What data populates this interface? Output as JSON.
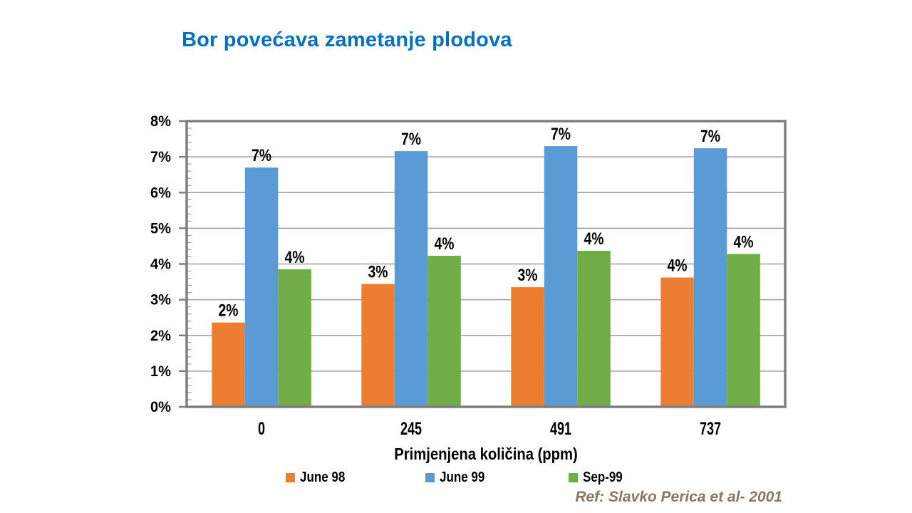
{
  "slide_title": {
    "text": "Bor povećava zametanje plodova",
    "color": "#0070C0"
  },
  "chart_data": {
    "type": "bar",
    "title": "Bor povećava zametanje plodova",
    "categories": [
      "0",
      "245",
      "491",
      "737"
    ],
    "series": [
      {
        "name": "June 98",
        "color": "#ED7D31",
        "values": [
          2.36,
          3.44,
          3.35,
          3.62
        ],
        "data_labels": [
          "2%",
          "3%",
          "3%",
          "4%"
        ]
      },
      {
        "name": "June 99",
        "color": "#5B9BD5",
        "values": [
          6.7,
          7.16,
          7.3,
          7.24
        ],
        "data_labels": [
          "7%",
          "7%",
          "7%",
          "7%"
        ]
      },
      {
        "name": "Sep-99",
        "color": "#70AD47",
        "values": [
          3.85,
          4.23,
          4.37,
          4.28
        ],
        "data_labels": [
          "4%",
          "4%",
          "4%",
          "4%"
        ]
      }
    ],
    "xlabel": "Primjenjena količina (ppm)",
    "ylabel": "",
    "ylim": [
      0,
      8
    ],
    "ytick_step": 1,
    "ytick_labels": [
      "0%",
      "1%",
      "2%",
      "3%",
      "4%",
      "5%",
      "6%",
      "7%",
      "8%"
    ],
    "minor_tick_step": 0.2,
    "grid": true,
    "legend_position": "bottom",
    "legend": [
      "June 98",
      "June 99",
      "Sep-99"
    ],
    "axis_color": "#7F7F7F",
    "grid_color": "#9D9D9D",
    "label_color": "#000000"
  },
  "footer": {
    "reference": "Ref: Slavko Perica et al- 2001",
    "color": "#877767"
  }
}
